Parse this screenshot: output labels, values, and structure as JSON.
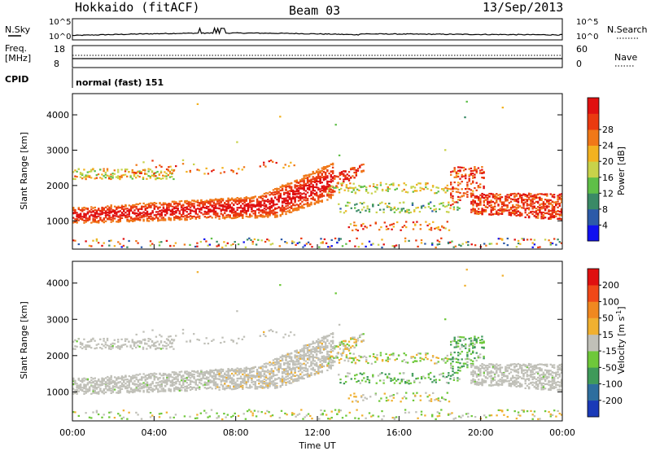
{
  "header": {
    "title": "Hokkaido (fitACF)",
    "beam": "Beam 03",
    "date": "13/Sep/2013"
  },
  "nsky_panel": {
    "left_label": "N.Sky",
    "right_label": "N.Search",
    "left_ticks": [
      "10^5",
      "10^0"
    ],
    "right_ticks": [
      "10^5",
      "10^0"
    ]
  },
  "freq_panel": {
    "left_label_line1": "Freq.",
    "left_label_line2": "[MHz]",
    "right_label": "Nave",
    "left_ticks": [
      "18",
      "8"
    ],
    "right_ticks": [
      "60",
      "0"
    ]
  },
  "cpid": {
    "label": "CPID",
    "value": "normal (fast) 151"
  },
  "chart_data": [
    {
      "type": "heatmap",
      "panel": "power",
      "ylabel": "Slant Range [km]",
      "xlabel": "",
      "yticks": [
        "1000",
        "2000",
        "3000",
        "4000"
      ],
      "ylim": [
        200,
        4600
      ],
      "xlim": [
        0,
        24
      ],
      "colorbar": {
        "label": "Power [dB]",
        "ticks": [
          "4",
          "8",
          "12",
          "16",
          "20",
          "24",
          "28"
        ],
        "colors": [
          "#1010f0",
          "#2c5aa8",
          "#3a8a66",
          "#5fbf48",
          "#c8d24a",
          "#f2b220",
          "#f07818",
          "#ea3a10",
          "#e01010"
        ]
      },
      "features": [
        {
          "name": "main band",
          "x": [
            0,
            12.8
          ],
          "range_km": [
            900,
            1700
          ]
        },
        {
          "name": "upper band",
          "x": [
            0,
            5
          ],
          "range_km": [
            2200,
            2500
          ]
        }
      ]
    },
    {
      "type": "heatmap",
      "panel": "velocity",
      "ylabel": "Slant Range [km]",
      "xlabel": "Time UT",
      "yticks": [
        "1000",
        "2000",
        "3000",
        "4000"
      ],
      "ylim": [
        200,
        4600
      ],
      "xlim": [
        0,
        24
      ],
      "xticks": [
        "00:00",
        "04:00",
        "08:00",
        "12:00",
        "16:00",
        "20:00",
        "00:00"
      ],
      "colorbar": {
        "label": "Velocity [m s",
        "label_sup": "-1",
        "label_end": "]",
        "ticks": [
          "200",
          "100",
          "50",
          "15",
          "-15",
          "-50",
          "-100",
          "-200"
        ],
        "colors": [
          "#1a3ab8",
          "#2e6e9e",
          "#3f9a5a",
          "#6ec83a",
          "#c0c0b8",
          "#f0b030",
          "#f08820",
          "#f04818",
          "#e01010"
        ]
      }
    }
  ]
}
